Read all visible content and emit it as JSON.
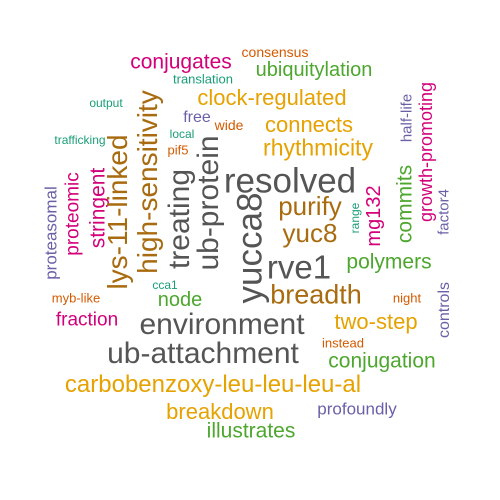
{
  "colors": {
    "orange": "#E6A200",
    "darkorange": "#D45A00",
    "gray": "#555555",
    "magenta": "#D3007A",
    "green": "#4DA72E",
    "purple": "#6C5FA8",
    "teal": "#1A9E77",
    "brown": "#A86B0F"
  },
  "words": [
    {
      "text": "consensus",
      "color": "#D45A00"
    },
    {
      "text": "conjugates",
      "color": "#D3007A"
    },
    {
      "text": "ubiquitylation",
      "color": "#4DA72E"
    },
    {
      "text": "translation",
      "color": "#1A9E77"
    },
    {
      "text": "clock-regulated",
      "color": "#E6A200"
    },
    {
      "text": "output",
      "color": "#1A9E77"
    },
    {
      "text": "free",
      "color": "#6C5FA8"
    },
    {
      "text": "wide",
      "color": "#D45A00"
    },
    {
      "text": "connects",
      "color": "#E6A200"
    },
    {
      "text": "local",
      "color": "#1A9E77"
    },
    {
      "text": "rhythmicity",
      "color": "#E6A200"
    },
    {
      "text": "trafficking",
      "color": "#1A9E77"
    },
    {
      "text": "pif5",
      "color": "#D45A00"
    },
    {
      "text": "resolved",
      "color": "#555555"
    },
    {
      "text": "purify",
      "color": "#A86B0F"
    },
    {
      "text": "yuc8",
      "color": "#A86B0F"
    },
    {
      "text": "rve1",
      "color": "#555555"
    },
    {
      "text": "polymers",
      "color": "#4DA72E"
    },
    {
      "text": "breadth",
      "color": "#A86B0F"
    },
    {
      "text": "myb-like",
      "color": "#D45A00"
    },
    {
      "text": "cca1",
      "color": "#1A9E77"
    },
    {
      "text": "node",
      "color": "#4DA72E"
    },
    {
      "text": "night",
      "color": "#D45A00"
    },
    {
      "text": "fraction",
      "color": "#D3007A"
    },
    {
      "text": "environment",
      "color": "#555555"
    },
    {
      "text": "two-step",
      "color": "#E6A200"
    },
    {
      "text": "instead",
      "color": "#D45A00"
    },
    {
      "text": "ub-attachment",
      "color": "#555555"
    },
    {
      "text": "conjugation",
      "color": "#4DA72E"
    },
    {
      "text": "carbobenzoxy-leu-leu-leu-al",
      "color": "#E6A200"
    },
    {
      "text": "breakdown",
      "color": "#E6A200"
    },
    {
      "text": "profoundly",
      "color": "#6C5FA8"
    },
    {
      "text": "illustrates",
      "color": "#4DA72E"
    },
    {
      "text": "proteasomal",
      "color": "#6C5FA8"
    },
    {
      "text": "proteomic",
      "color": "#D3007A"
    },
    {
      "text": "stringent",
      "color": "#D3007A"
    },
    {
      "text": "lys-11-linked",
      "color": "#A86B0F"
    },
    {
      "text": "high-sensitivity",
      "color": "#A86B0F"
    },
    {
      "text": "treating",
      "color": "#555555"
    },
    {
      "text": "ub-protein",
      "color": "#555555"
    },
    {
      "text": "yucca8",
      "color": "#555555"
    },
    {
      "text": "range",
      "color": "#1A9E77"
    },
    {
      "text": "mg132",
      "color": "#D3007A"
    },
    {
      "text": "commits",
      "color": "#4DA72E"
    },
    {
      "text": "half-life",
      "color": "#6C5FA8"
    },
    {
      "text": "growth-promoting",
      "color": "#D3007A"
    },
    {
      "text": "factor4",
      "color": "#6C5FA8"
    },
    {
      "text": "controls",
      "color": "#6C5FA8"
    }
  ]
}
